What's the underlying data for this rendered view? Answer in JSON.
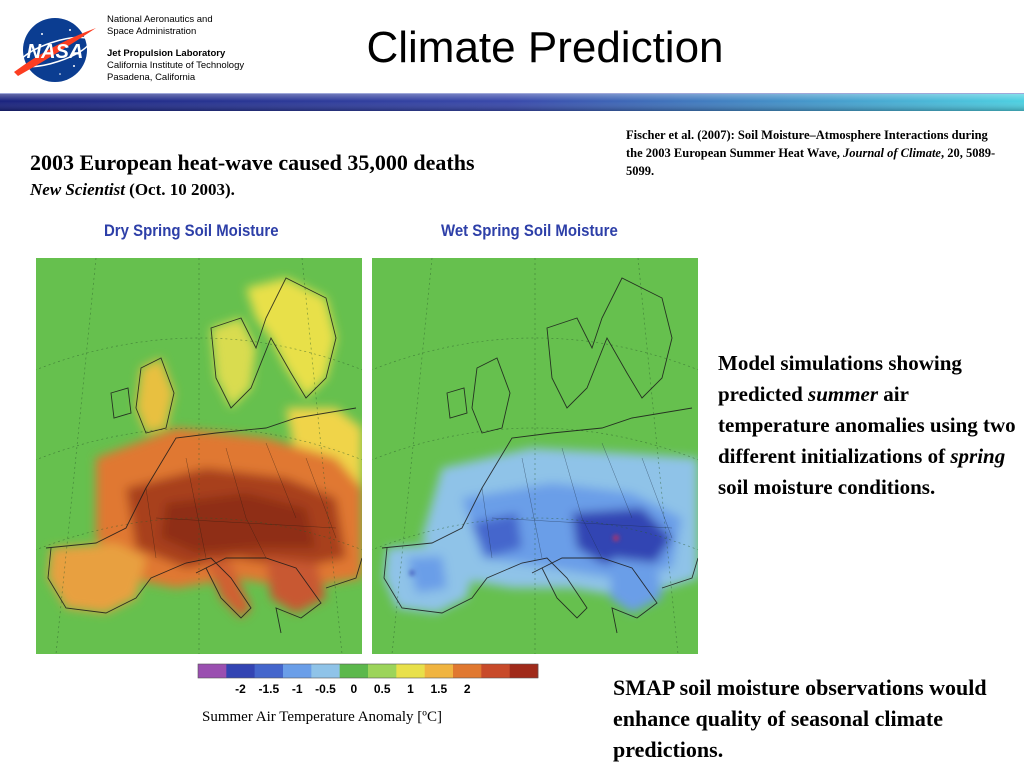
{
  "header": {
    "logo_text": "NASA",
    "org_line1": "National Aeronautics and",
    "org_line2": "Space Administration",
    "lab_name": "Jet Propulsion Laboratory",
    "lab_line2": "California Institute of Technology",
    "lab_line3": "Pasadena, California",
    "title": "Climate Prediction"
  },
  "headline": {
    "main": "2003 European heat-wave caused 35,000 deaths",
    "source_italic": "New Scientist",
    "source_rest": " (Oct. 10 2003)."
  },
  "citation": {
    "part1": "Fischer et al. (2007): Soil Moisture–Atmosphere Interactions during the 2003 European Summer Heat Wave, ",
    "journal_italic": "Journal of Climate",
    "part2": ", 20, 5089-5099."
  },
  "figure": {
    "left_label": "Dry Spring Soil Moisture",
    "right_label": "Wet Spring Soil Moisture",
    "legend_ticks": [
      "-2",
      "-1.5",
      "-1",
      "-0.5",
      "0",
      "0.5",
      "1",
      "1.5",
      "2"
    ],
    "legend_colors": [
      "#9a4fb0",
      "#3344b3",
      "#4466cc",
      "#6a9ee8",
      "#8fc3e8",
      "#5cb84c",
      "#9cd45a",
      "#e8e04a",
      "#f0b440",
      "#e07830",
      "#c84a2a",
      "#a02a1a"
    ],
    "legend_caption": "Summer Air Temperature Anomaly [ºC]"
  },
  "description": {
    "t1": "Model simulations showing predicted ",
    "i1": "summer",
    "t2": " air temperature anomalies using two different initializations of ",
    "i2": "spring",
    "t3": " soil moisture conditions."
  },
  "conclusion": "SMAP soil moisture observations would enhance quality of seasonal climate predictions.",
  "colors": {
    "title_bar_dark": "#1a237e",
    "title_bar_light": "#4dd0e1",
    "panel_label": "#2d3fa8",
    "land_green": "#5cb84c",
    "sea_green": "#66c04e"
  }
}
